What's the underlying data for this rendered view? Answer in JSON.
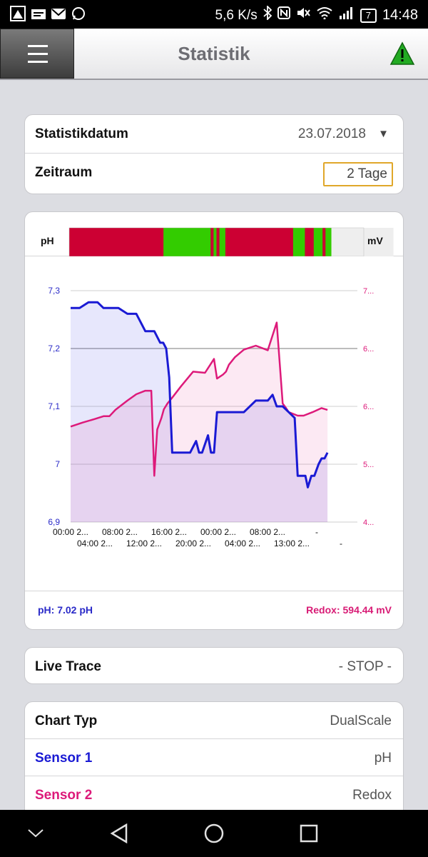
{
  "status_bar": {
    "speed": "5,6 K/s",
    "battery": "7",
    "time": "14:48",
    "icons": [
      "app-icon",
      "news-icon",
      "mail-icon",
      "whatsapp-icon",
      "bluetooth-icon",
      "nfc-icon",
      "mute-icon",
      "wifi-icon",
      "signal-icon",
      "battery-icon"
    ]
  },
  "header": {
    "title": "Statistik",
    "menu_icon": "hamburger-icon",
    "warning_icon": "warning-icon",
    "warning_color": "#22aa22"
  },
  "settings": {
    "date_label": "Statistikdatum",
    "date_value": "23.07.2018",
    "period_label": "Zeitraum",
    "period_value": "2 Tage"
  },
  "chart": {
    "left_unit": "pH",
    "right_unit": "mV",
    "footer_left": "pH: 7.02 pH",
    "footer_right": "Redox: 594.44 mV",
    "colors": {
      "ph": "#1a1ad4",
      "redox": "#dd1a7a",
      "bad": "#cc0033",
      "good": "#33cc00",
      "none": "#eeeeee"
    }
  },
  "chart_data": {
    "type": "line",
    "left_axis": {
      "ticks": [
        "7,3",
        "7,2",
        "7,1",
        "7",
        "6,9"
      ],
      "range": [
        6.9,
        7.3
      ]
    },
    "right_axis": {
      "ticks": [
        "7...",
        "6...",
        "6...",
        "5...",
        "4..."
      ],
      "range": [
        400,
        800
      ]
    },
    "x_ticks_row1": [
      "00:00 2...",
      "08:00 2...",
      "16:00 2...",
      "00:00 2...",
      "08:00 2...",
      "-"
    ],
    "x_ticks_row2": [
      "04:00 2...",
      "12:00 2...",
      "20:00 2...",
      "04:00 2...",
      "13:00 2...",
      "-"
    ],
    "status_segments": [
      {
        "state": "bad",
        "span": 0.32
      },
      {
        "state": "good",
        "span": 0.16
      },
      {
        "state": "bad",
        "span": 0.01
      },
      {
        "state": "good",
        "span": 0.01
      },
      {
        "state": "bad",
        "span": 0.01
      },
      {
        "state": "good",
        "span": 0.02
      },
      {
        "state": "bad",
        "span": 0.23
      },
      {
        "state": "good",
        "span": 0.04
      },
      {
        "state": "bad",
        "span": 0.03
      },
      {
        "state": "good",
        "span": 0.03
      },
      {
        "state": "bad",
        "span": 0.01
      },
      {
        "state": "good",
        "span": 0.02
      },
      {
        "state": "none",
        "span": 0.21
      }
    ],
    "series": [
      {
        "name": "pH",
        "axis": "left",
        "x": [
          0,
          1.5,
          3,
          4.5,
          5.5,
          8,
          9.5,
          11,
          12.5,
          14,
          15,
          15.5,
          16,
          16.5,
          17,
          18,
          20,
          21,
          21.5,
          22,
          23,
          23.5,
          24,
          24.5,
          25,
          25.5,
          26,
          27,
          29,
          31,
          32.5,
          33,
          33.8,
          34.5,
          35.5,
          36.5,
          37.5,
          38,
          39.3,
          39.7,
          40.3,
          40.8,
          41.5,
          42,
          42.5,
          43
        ],
        "y": [
          7.27,
          7.27,
          7.28,
          7.28,
          7.27,
          7.27,
          7.26,
          7.26,
          7.23,
          7.23,
          7.21,
          7.21,
          7.2,
          7.15,
          7.02,
          7.02,
          7.02,
          7.04,
          7.02,
          7.02,
          7.05,
          7.02,
          7.02,
          7.09,
          7.09,
          7.09,
          7.09,
          7.09,
          7.09,
          7.11,
          7.11,
          7.11,
          7.12,
          7.1,
          7.1,
          7.09,
          7.08,
          6.98,
          6.98,
          6.96,
          6.98,
          6.98,
          7.0,
          7.01,
          7.01,
          7.02
        ]
      },
      {
        "name": "Redox",
        "axis": "right",
        "x": [
          0,
          2,
          4,
          5.5,
          6.5,
          7.5,
          9.5,
          11,
          12.5,
          13.5,
          14,
          14.5,
          15.2,
          15.6,
          16.2,
          17,
          18.5,
          20.5,
          22.5,
          24,
          24.5,
          25.5,
          26,
          26.5,
          27.5,
          29,
          31,
          33,
          34.5,
          35.5,
          36,
          36.5,
          38,
          39,
          40.5,
          42,
          43
        ],
        "y": [
          565,
          572,
          578,
          583,
          583,
          594,
          610,
          621,
          627,
          627,
          480,
          560,
          580,
          595,
          605,
          615,
          635,
          660,
          658,
          682,
          648,
          655,
          660,
          672,
          685,
          698,
          705,
          697,
          745,
          605,
          598,
          590,
          584,
          584,
          590,
          597,
          594
        ]
      }
    ],
    "x_range": [
      0,
      48
    ]
  },
  "live_trace": {
    "label": "Live Trace",
    "value": "- STOP -"
  },
  "config": {
    "chart_type_label": "Chart Typ",
    "chart_type_value": "DualScale",
    "sensor1_label": "Sensor 1",
    "sensor1_value": "pH",
    "sensor2_label": "Sensor 2",
    "sensor2_value": "Redox",
    "sensor1_color": "#1a1ad4",
    "sensor2_color": "#dd1a7a"
  },
  "nav": [
    "chevron-down-icon",
    "back-icon",
    "home-icon",
    "recent-apps-icon"
  ]
}
